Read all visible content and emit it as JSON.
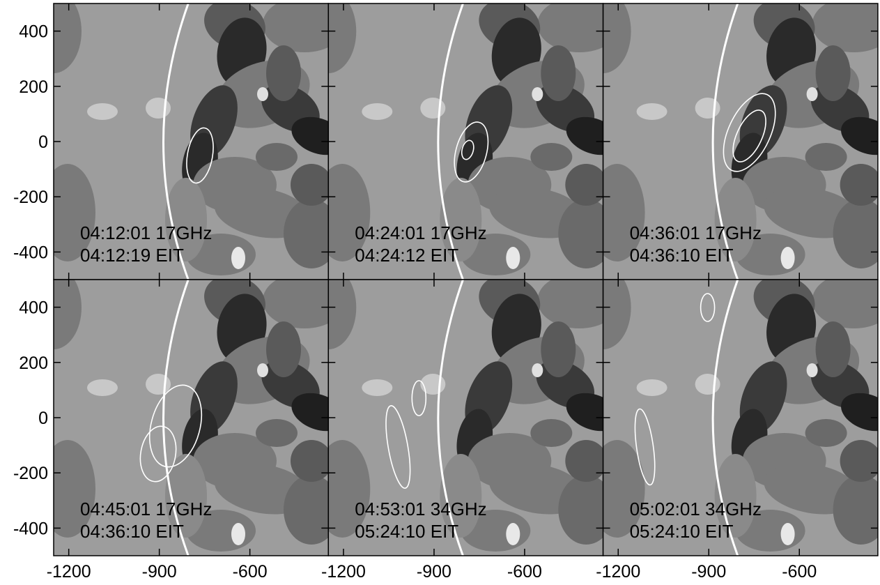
{
  "chart_data": {
    "type": "image-grid",
    "xlim": [
      -1250,
      -340
    ],
    "ylim": [
      -500,
      500
    ],
    "xticks": [
      -1200,
      -900,
      -600
    ],
    "yticks": [
      -400,
      -200,
      0,
      200,
      400
    ],
    "panels": [
      {
        "radio": "04:12:01 17GHz",
        "eit": "04:12:19 EIT"
      },
      {
        "radio": "04:24:01 17GHz",
        "eit": "04:24:12 EIT"
      },
      {
        "radio": "04:36:01 17GHz",
        "eit": "04:36:10 EIT"
      },
      {
        "radio": "04:45:01 17GHz",
        "eit": "04:36:10 EIT"
      },
      {
        "radio": "04:53:01 34GHz",
        "eit": "05:24:10 EIT"
      },
      {
        "radio": "05:02:01 34GHz",
        "eit": "05:24:10 EIT"
      }
    ]
  }
}
